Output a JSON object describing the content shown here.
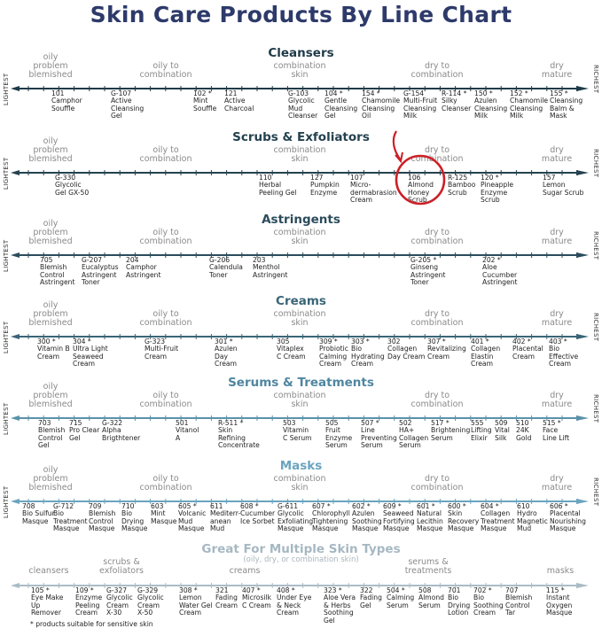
{
  "title": "Skin Care Products By Line Chart",
  "axis_left_label": "LIGHTEST",
  "axis_right_label": "RICHEST",
  "skin_types": [
    "oily\nproblem\nblemished",
    "oily to\ncombination",
    "combination\nskin",
    "dry to\ncombination",
    "dry\nmature"
  ],
  "colors": {
    "title": "#2d3a6a",
    "highlight": "#cc2027"
  },
  "highlighted_product": "106 Almond Honey Scrub",
  "sections": [
    {
      "title": "Cleansers",
      "color": "#1f3a48",
      "products": [
        {
          "code": "101",
          "name": "Camphor\nSouffle"
        },
        {
          "code": "G-107",
          "name": "Active\nCleansing\nGel"
        },
        {
          "code": "102 *",
          "name": "Mint\nSouffle"
        },
        {
          "code": "121",
          "name": "Active\nCharcoal"
        },
        {
          "code": "G-103",
          "name": "Glycolic\nMud\nCleanser"
        },
        {
          "code": "104 *",
          "name": "Gentle\nCleansing\nGel"
        },
        {
          "code": "154 *",
          "name": "Chamomile\nCleansing\nOil"
        },
        {
          "code": "G-154",
          "name": "Multi-Fruit\nCleansing\nMilk"
        },
        {
          "code": "R-114 *",
          "name": "Silky\nCleanser"
        },
        {
          "code": "150 *",
          "name": "Azulen\nCleansing\nMilk"
        },
        {
          "code": "152 *",
          "name": "Chamomile\nCleansing\nMilk"
        },
        {
          "code": "155 *",
          "name": "Cleansing\nBalm &\nMask"
        }
      ]
    },
    {
      "title": "Scrubs & Exfoliators",
      "color": "#24424f",
      "products": [
        {
          "code": "G-330",
          "name": "Glycolic\nGel GX-50"
        },
        {
          "code": "110",
          "name": "Herbal\nPeeling Gel"
        },
        {
          "code": "127",
          "name": "Pumpkin\nEnzyme"
        },
        {
          "code": "107",
          "name": "Micro-\ndermabrasion\nCream"
        },
        {
          "code": "106",
          "name": "Almond\nHoney\nScrub"
        },
        {
          "code": "R-125",
          "name": "Bamboo\nScrub"
        },
        {
          "code": "120 *",
          "name": "Pineapple\nEnzyme\nScrub"
        },
        {
          "code": "157",
          "name": "Lemon\nSugar Scrub"
        }
      ]
    },
    {
      "title": "Astringents",
      "color": "#2b4c5c",
      "products": [
        {
          "code": "705",
          "name": "Blemish\nControl\nAstringent"
        },
        {
          "code": "G-207",
          "name": "Eucalyptus\nAstringent\nToner"
        },
        {
          "code": "204",
          "name": "Camphor\nAstringent"
        },
        {
          "code": "G-206",
          "name": "Calendula\nToner"
        },
        {
          "code": "203",
          "name": "Menthol\nAstringent"
        },
        {
          "code": "G-205 *",
          "name": "Ginseng\nAstringent\nToner"
        },
        {
          "code": "202 *",
          "name": "Aloe\nCucumber\nAstringent"
        }
      ]
    },
    {
      "title": "Creams",
      "color": "#3a6577",
      "products": [
        {
          "code": "300 *",
          "name": "Vitamin B\nCream"
        },
        {
          "code": "304 *",
          "name": "Ultra Light\nSeaweed\nCream"
        },
        {
          "code": "G-323",
          "name": "Multi-Fruit\nCream"
        },
        {
          "code": "301 *",
          "name": "Azulen\nDay\nCream"
        },
        {
          "code": "305",
          "name": "Vitaplex\nC Cream"
        },
        {
          "code": "309 *",
          "name": "Probiotic\nCalming\nCream"
        },
        {
          "code": "303 *",
          "name": "Bio\nHydrating\nCream"
        },
        {
          "code": "302",
          "name": "Collagen\nDay Cream"
        },
        {
          "code": "307 *",
          "name": "Revitalizing\nCream"
        },
        {
          "code": "401 *",
          "name": "Collagen\nElastin\nCream"
        },
        {
          "code": "402 *",
          "name": "Placental\nCream"
        },
        {
          "code": "403 *",
          "name": "Bio\nEffective\nCream"
        }
      ]
    },
    {
      "title": "Serums & Treatments",
      "color": "#4f86a0",
      "products": [
        {
          "code": "703",
          "name": "Blemish\nControl\nGel"
        },
        {
          "code": "715",
          "name": "Pro Clear\nGel"
        },
        {
          "code": "G-322",
          "name": "Alpha\nBrigthtener"
        },
        {
          "code": "501",
          "name": "Vitanol\nA"
        },
        {
          "code": "R-511 *",
          "name": "Skin\nRefining\nConcentrate"
        },
        {
          "code": "503",
          "name": "Vitamin\nC Serum"
        },
        {
          "code": "505",
          "name": "Fruit\nEnzyme\nSerum"
        },
        {
          "code": "507 *",
          "name": "Line\nPreventing\nSerum"
        },
        {
          "code": "502",
          "name": "HA+\nCollagen\nSerum"
        },
        {
          "code": "517 *",
          "name": "Brightening\nSerum"
        },
        {
          "code": "555",
          "name": "Lifting\nElixir"
        },
        {
          "code": "509",
          "name": "Vital\nSilk"
        },
        {
          "code": "510",
          "name": "24K\nGold"
        },
        {
          "code": "515 *",
          "name": "Face\nLine Lift"
        }
      ]
    },
    {
      "title": "Masks",
      "color": "#6aa4bf",
      "products": [
        {
          "code": "708",
          "name": "Bio Sulfur\nMasque"
        },
        {
          "code": "G-712",
          "name": "Bio\nTreatment\nMasque"
        },
        {
          "code": "709",
          "name": "Blemish\nControl\nMasque"
        },
        {
          "code": "710",
          "name": "Bio\nDrying\nMasque"
        },
        {
          "code": "603",
          "name": "Mint\nMasque"
        },
        {
          "code": "605 *",
          "name": "Volcanic\nMud\nMasque"
        },
        {
          "code": "611",
          "name": "Mediterr-\nanean\nMud"
        },
        {
          "code": "608 *",
          "name": "Cucumber\nIce Sorbet"
        },
        {
          "code": "G-611",
          "name": "Glycolic\nExfoliating\nMasque"
        },
        {
          "code": "607 *",
          "name": "Chlorophyll\nTightening\nMasque"
        },
        {
          "code": "602 *",
          "name": "Azulen\nSoothing\nMasque"
        },
        {
          "code": "609 *",
          "name": "Seaweed\nFortifying\nMasque"
        },
        {
          "code": "601 *",
          "name": "Natural\nLecithin\nMasque"
        },
        {
          "code": "600 *",
          "name": "Skin\nRecovery\nMasque"
        },
        {
          "code": "604 *",
          "name": "Collagen\nTreatment\nMasque"
        },
        {
          "code": "610",
          "name": "Hydro\nMagnetic\nMud"
        },
        {
          "code": "606 *",
          "name": "Placental\nNourishing\nMasque"
        }
      ]
    },
    {
      "title": "Great For Multiple Skin Types",
      "subtitle": "(oily, dry, or combination skin)",
      "color": "#a6b8c2",
      "categories": [
        "cleansers",
        "scrubs &\nexfoliators",
        "creams",
        "serums &\ntreatments",
        "masks"
      ],
      "products": [
        {
          "code": "105 *",
          "name": "Eye Make\nUp\nRemover"
        },
        {
          "code": "109 *",
          "name": "Enzyme\nPeeling\nCream"
        },
        {
          "code": "G-327",
          "name": "Glycolic\nCream\nX-30"
        },
        {
          "code": "G-329",
          "name": "Glycolic\nCream\nX-50"
        },
        {
          "code": "308 *",
          "name": "Lemon\nWater Gel\nCream"
        },
        {
          "code": "321",
          "name": "Fading\nCream"
        },
        {
          "code": "407 *",
          "name": "Microsilk\nC Cream"
        },
        {
          "code": "408 *",
          "name": "Under Eye\n& Neck\nCream"
        },
        {
          "code": "323 *",
          "name": "Aloe Vera\n& Herbs\nSoothing\nGel"
        },
        {
          "code": "322",
          "name": "Fading\nGel"
        },
        {
          "code": "504 *",
          "name": "Calming\nSerum"
        },
        {
          "code": "508",
          "name": "Almond\nSerum"
        },
        {
          "code": "701",
          "name": "Bio\nDrying\nLotion"
        },
        {
          "code": "702 *",
          "name": "Bio\nSoothing\nCream"
        },
        {
          "code": "707",
          "name": "Blemish\nControl\nTar"
        },
        {
          "code": "115 *",
          "name": "Instant\nOxygen\nMasque"
        }
      ]
    }
  ],
  "footnote": "* products suitable for sensitive skin"
}
